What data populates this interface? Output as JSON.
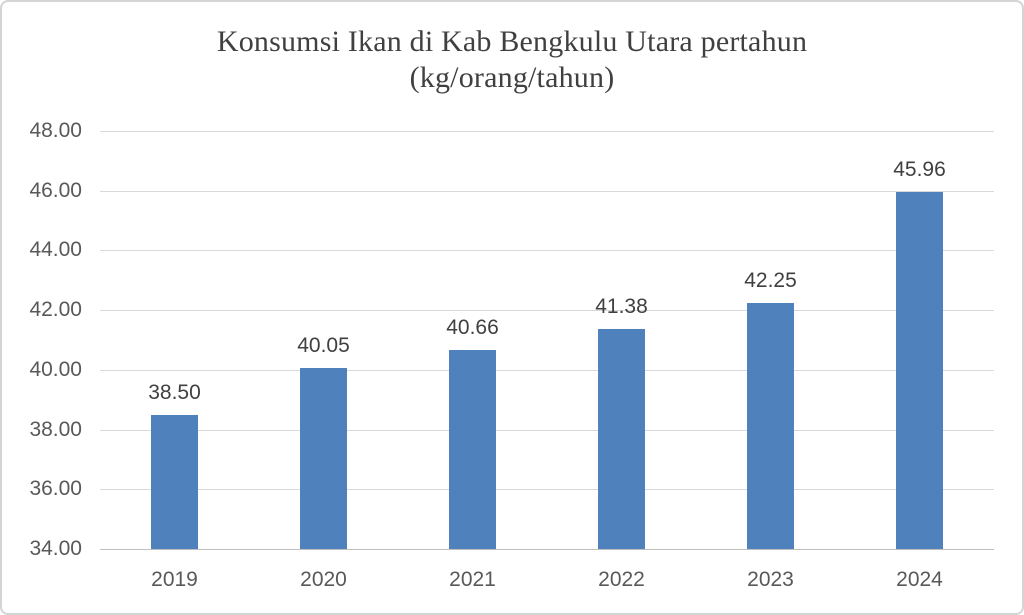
{
  "page": {
    "background": "#ffffff",
    "border_color": "#d4d4d4"
  },
  "chart_data": {
    "type": "bar",
    "title_line1": "Konsumsi Ikan di Kab Bengkulu Utara pertahun",
    "title_line2": "(kg/orang/tahun)",
    "title": "Konsumsi Ikan di Kab Bengkulu Utara pertahun (kg/orang/tahun)",
    "xlabel": "",
    "ylabel": "",
    "categories": [
      "2019",
      "2020",
      "2021",
      "2022",
      "2023",
      "2024"
    ],
    "values": [
      38.5,
      40.05,
      40.66,
      41.38,
      42.25,
      45.96
    ],
    "value_labels": [
      "38.50",
      "40.05",
      "40.66",
      "41.38",
      "42.25",
      "45.96"
    ],
    "ylim": [
      34,
      48
    ],
    "ytick_step": 2,
    "ytick_labels": [
      "34.00",
      "36.00",
      "38.00",
      "40.00",
      "42.00",
      "44.00",
      "46.00",
      "48.00"
    ],
    "grid": true,
    "legend": false,
    "colors": {
      "bar": "#4F81BD",
      "gridline": "#D9D9D9",
      "axis_line": "#BFBFBF",
      "tick_text": "#595959",
      "value_label_text": "#404040",
      "title_text": "#404040"
    }
  }
}
